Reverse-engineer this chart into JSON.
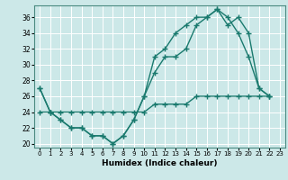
{
  "title": "",
  "xlabel": "Humidex (Indice chaleur)",
  "ylabel": "",
  "background_color": "#cce8e8",
  "grid_color": "#ffffff",
  "line_color": "#1a7a6e",
  "xlim": [
    -0.5,
    23.5
  ],
  "ylim": [
    19.5,
    37.5
  ],
  "xticks": [
    0,
    1,
    2,
    3,
    4,
    5,
    6,
    7,
    8,
    9,
    10,
    11,
    12,
    13,
    14,
    15,
    16,
    17,
    18,
    19,
    20,
    21,
    22,
    23
  ],
  "yticks": [
    20,
    22,
    24,
    26,
    28,
    30,
    32,
    34,
    36
  ],
  "series": [
    [
      27,
      24,
      23,
      22,
      22,
      21,
      21,
      20,
      21,
      23,
      26,
      31,
      32,
      34,
      35,
      36,
      36,
      37,
      36,
      34,
      31,
      27,
      26
    ],
    [
      27,
      24,
      23,
      22,
      22,
      21,
      21,
      20,
      21,
      23,
      26,
      29,
      31,
      31,
      32,
      35,
      36,
      37,
      35,
      36,
      34,
      27,
      26
    ],
    [
      24,
      24,
      24,
      24,
      24,
      24,
      24,
      24,
      24,
      24,
      24,
      25,
      25,
      25,
      25,
      26,
      26,
      26,
      26,
      26,
      26,
      26,
      26
    ]
  ],
  "series_x": [
    0,
    1,
    2,
    3,
    4,
    5,
    6,
    7,
    8,
    9,
    10,
    11,
    12,
    13,
    14,
    15,
    16,
    17,
    18,
    19,
    20,
    21,
    22
  ]
}
